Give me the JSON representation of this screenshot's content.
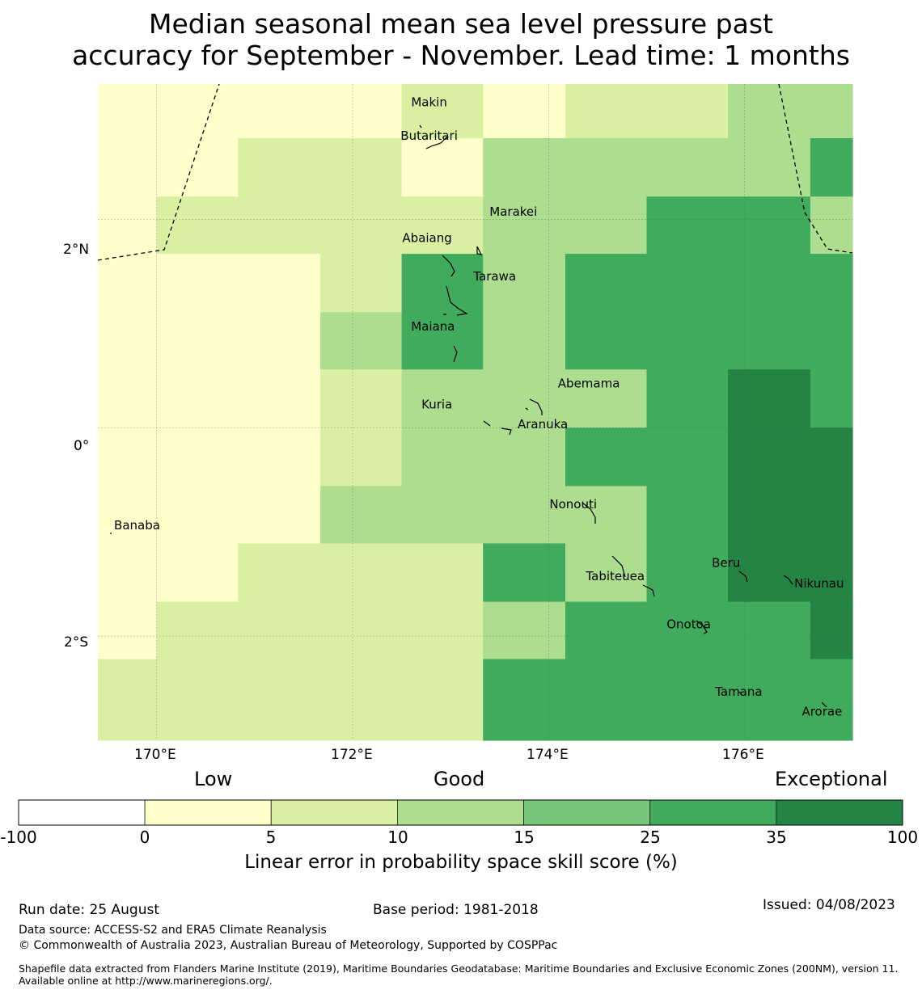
{
  "title_line1": "Median seasonal mean sea level pressure past",
  "title_line2": "accuracy for September - November. Lead time: 1 months",
  "map": {
    "lon_range": [
      169.4,
      177.1
    ],
    "lat_range": [
      -3.0,
      3.3
    ],
    "lon_ticks": [
      {
        "lon": 170,
        "label": "170°E"
      },
      {
        "lon": 172,
        "label": "172°E"
      },
      {
        "lon": 174,
        "label": "174°E"
      },
      {
        "lon": 176,
        "label": "176°E"
      }
    ],
    "lat_ticks": [
      {
        "lat": 2,
        "label": "2°N"
      },
      {
        "lat": 0,
        "label": "0°"
      },
      {
        "lat": -2,
        "label": "2°S"
      }
    ],
    "grid": true,
    "cell_edges_lon": [
      169.4,
      170.0,
      170.83,
      171.67,
      172.5,
      173.33,
      174.17,
      175.0,
      175.83,
      176.67,
      177.1
    ],
    "cell_edges_lat": [
      3.3,
      2.78,
      2.22,
      1.67,
      1.11,
      0.56,
      0.0,
      -0.56,
      -1.11,
      -1.67,
      -2.22,
      -3.0
    ],
    "skill_classes": [
      [
        1,
        1,
        1,
        1,
        2,
        1,
        2,
        2,
        3,
        3
      ],
      [
        1,
        1,
        2,
        2,
        1,
        3,
        3,
        3,
        3,
        5
      ],
      [
        1,
        2,
        2,
        2,
        2,
        3,
        3,
        5,
        5,
        3
      ],
      [
        1,
        1,
        1,
        2,
        5,
        3,
        5,
        5,
        5,
        5
      ],
      [
        1,
        1,
        1,
        3,
        5,
        3,
        5,
        5,
        5,
        5
      ],
      [
        1,
        1,
        1,
        2,
        3,
        3,
        3,
        5,
        6,
        5
      ],
      [
        1,
        1,
        1,
        2,
        3,
        3,
        5,
        5,
        6,
        6
      ],
      [
        1,
        1,
        1,
        3,
        3,
        3,
        3,
        5,
        6,
        6
      ],
      [
        1,
        1,
        2,
        2,
        2,
        5,
        3,
        5,
        6,
        6
      ],
      [
        1,
        2,
        2,
        2,
        2,
        3,
        5,
        5,
        5,
        6
      ],
      [
        2,
        2,
        2,
        2,
        2,
        5,
        5,
        5,
        5,
        5
      ]
    ],
    "places": [
      {
        "name": "Makin",
        "lon": 172.78,
        "lat": 3.12
      },
      {
        "name": "Butaritari",
        "lon": 172.78,
        "lat": 2.8
      },
      {
        "name": "Marakei",
        "lon": 173.64,
        "lat": 2.07
      },
      {
        "name": "Abaiang",
        "lon": 172.76,
        "lat": 1.82
      },
      {
        "name": "Tarawa",
        "lon": 173.45,
        "lat": 1.45
      },
      {
        "name": "Maiana",
        "lon": 172.82,
        "lat": 0.97
      },
      {
        "name": "Abemama",
        "lon": 174.41,
        "lat": 0.42
      },
      {
        "name": "Kuria",
        "lon": 172.86,
        "lat": 0.22
      },
      {
        "name": "Aranuka",
        "lon": 173.94,
        "lat": 0.03
      },
      {
        "name": "Nonouti",
        "lon": 174.25,
        "lat": -0.74
      },
      {
        "name": "Banaba",
        "lon": 169.8,
        "lat": -0.94
      },
      {
        "name": "Beru",
        "lon": 175.81,
        "lat": -1.3
      },
      {
        "name": "Tabiteuea",
        "lon": 174.68,
        "lat": -1.43
      },
      {
        "name": "Nikunau",
        "lon": 176.76,
        "lat": -1.5
      },
      {
        "name": "Onotoa",
        "lon": 175.43,
        "lat": -1.89
      },
      {
        "name": "Tamana",
        "lon": 175.94,
        "lat": -2.54
      },
      {
        "name": "Arorae",
        "lon": 176.79,
        "lat": -2.73
      }
    ]
  },
  "colorbar": {
    "categories": [
      {
        "label": "Low",
        "value": 0
      },
      {
        "label": "Good",
        "value": 10
      },
      {
        "label": "Exceptional",
        "value": 35
      }
    ],
    "bounds": [
      -100,
      0,
      5,
      10,
      15,
      25,
      35,
      100
    ],
    "tick_labels": [
      "-100",
      "0",
      "5",
      "10",
      "15",
      "25",
      "35",
      "100"
    ],
    "colors": [
      "#ffffff",
      "#ffffcc",
      "#d9f0a3",
      "#addd8e",
      "#78c679",
      "#41ab5d",
      "#238443"
    ],
    "label": "Linear error in probability space skill score (%)"
  },
  "footer": {
    "run_date": "Run date: 25 August",
    "base_period": "Base period: 1981-2018",
    "issued": "Issued: 04/08/2023",
    "data_source": "Data source: ACCESS-S2 and ERA5 Climate Reanalysis",
    "copyright": "© Commonwealth of Australia 2023, Australian Bureau of Meteorology, Supported by COSPPac",
    "shapefile": "Shapefile data extracted from Flanders Marine Institute (2019), Maritime Boundaries Geodatabase: Maritime Boundaries and Exclusive Economic Zones (200NM), version 11. Available online at http://www.marineregions.org/."
  }
}
